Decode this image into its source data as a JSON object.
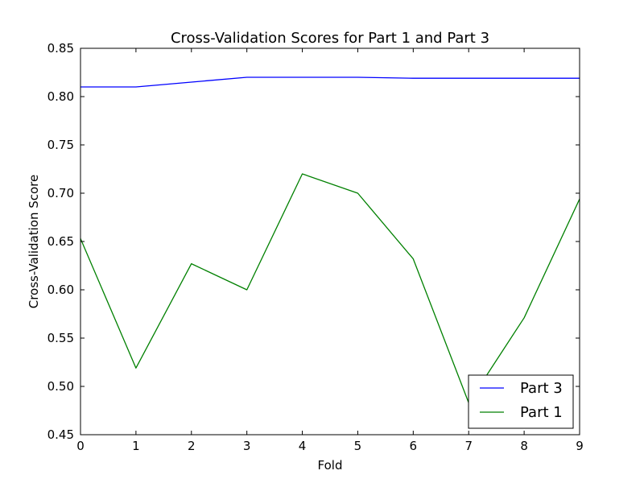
{
  "chart_data": {
    "type": "line",
    "title": "Cross-Validation Scores for Part 1 and Part 3",
    "xlabel": "Fold",
    "ylabel": "Cross-Validation Score",
    "x": [
      0,
      1,
      2,
      3,
      4,
      5,
      6,
      7,
      8,
      9
    ],
    "xlim": [
      0,
      9
    ],
    "ylim": [
      0.45,
      0.85
    ],
    "xticks": [
      "0",
      "1",
      "2",
      "3",
      "4",
      "5",
      "6",
      "7",
      "8",
      "9"
    ],
    "yticks": [
      "0.45",
      "0.50",
      "0.55",
      "0.60",
      "0.65",
      "0.70",
      "0.75",
      "0.80",
      "0.85"
    ],
    "grid": false,
    "legend_position": "bottom-right",
    "series": [
      {
        "name": "Part 3",
        "color": "#0000ff",
        "values": [
          0.81,
          0.81,
          0.815,
          0.82,
          0.82,
          0.82,
          0.819,
          0.819,
          0.819,
          0.819
        ]
      },
      {
        "name": "Part 1",
        "color": "#008000",
        "values": [
          0.653,
          0.519,
          0.627,
          0.6,
          0.72,
          0.7,
          0.632,
          0.483,
          0.571,
          0.694
        ]
      }
    ]
  }
}
